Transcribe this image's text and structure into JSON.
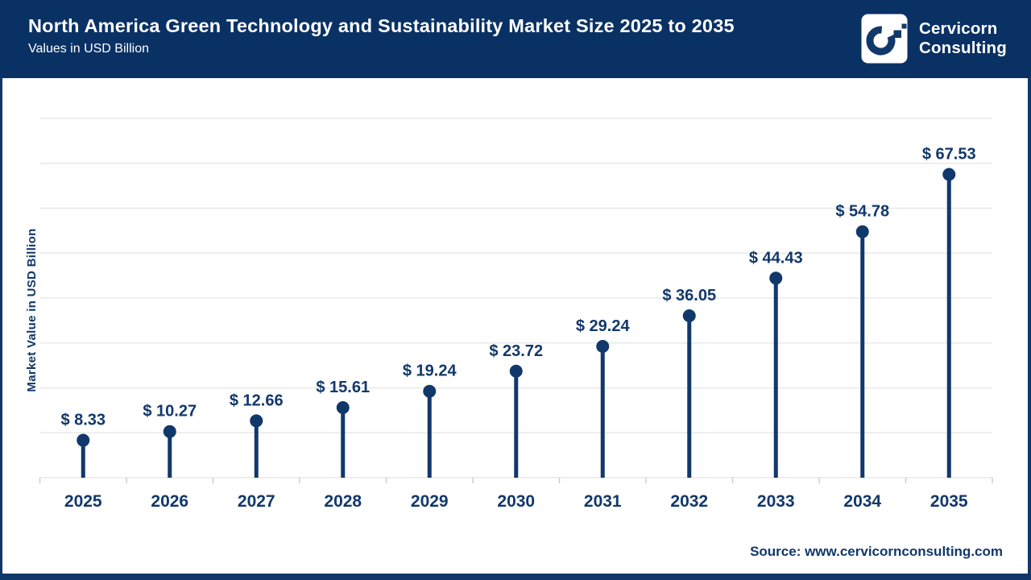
{
  "header": {
    "title": "North America Green Technology and Sustainability Market Size 2025 to 2035",
    "subtitle": "Values in USD Billion",
    "brand_line1": "Cervicorn",
    "brand_line2": "Consulting"
  },
  "footer": {
    "source": "Source: www.cervicornconsulting.com"
  },
  "colors": {
    "header_bg": "#0a3164",
    "navy": "#11386b",
    "gridline": "#e8e8e8",
    "tick_gray": "#c9cdd2",
    "logo_bg": "#ffffff"
  },
  "chart_data": {
    "type": "bar",
    "variant": "lollipop",
    "title": "North America Green Technology and Sustainability Market Size 2025 to 2035",
    "categories": [
      "2025",
      "2026",
      "2027",
      "2028",
      "2029",
      "2030",
      "2031",
      "2032",
      "2033",
      "2034",
      "2035"
    ],
    "values": [
      8.33,
      10.27,
      12.66,
      15.61,
      19.24,
      23.72,
      29.24,
      36.05,
      44.43,
      54.78,
      67.53
    ],
    "value_prefix": "$ ",
    "xlabel": "",
    "ylabel": "Market Value in USD Billion",
    "ylim": [
      0,
      80
    ],
    "grid_step": 10,
    "grid": true,
    "legend": false
  }
}
